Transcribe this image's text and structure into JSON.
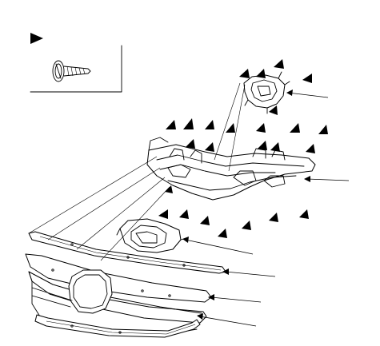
{
  "legend": {
    "fastener_icon": "screw-icon",
    "marker_icon": "triangle-marker-icon"
  },
  "colors": {
    "line": "#000000",
    "background": "#ffffff"
  }
}
